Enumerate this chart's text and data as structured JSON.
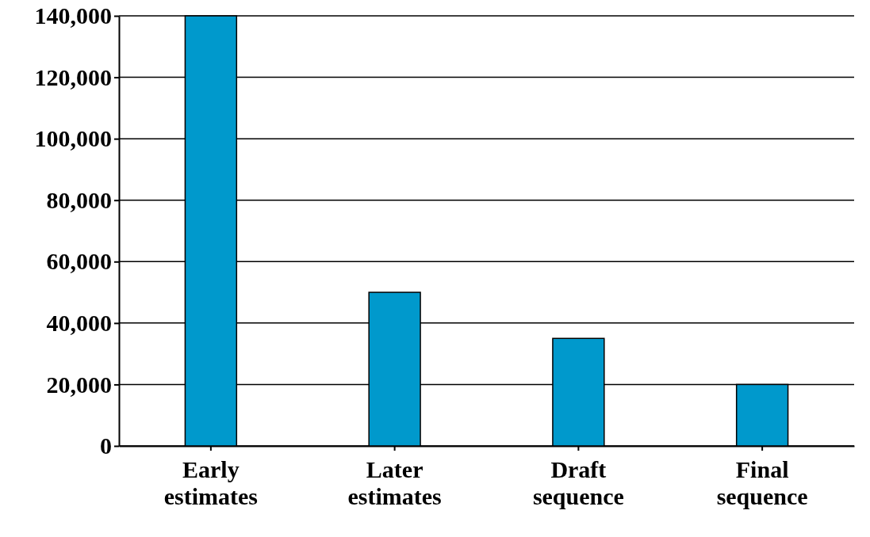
{
  "chart_data": {
    "type": "bar",
    "categories": [
      "Early\nestimates",
      "Later\nestimates",
      "Draft\nsequence",
      "Final\nsequence"
    ],
    "values": [
      140000,
      50000,
      35000,
      20000
    ],
    "color": "#0099cc",
    "ylim": [
      0,
      140000
    ],
    "yticks": [
      {
        "value": 0,
        "label": "0"
      },
      {
        "value": 20000,
        "label": "20,000"
      },
      {
        "value": 40000,
        "label": "40,000"
      },
      {
        "value": 60000,
        "label": "60,000"
      },
      {
        "value": 80000,
        "label": "80,000"
      },
      {
        "value": 100000,
        "label": "100,000"
      },
      {
        "value": 120000,
        "label": "120,000"
      },
      {
        "value": 140000,
        "label": "140,000"
      }
    ],
    "grid": "y"
  }
}
